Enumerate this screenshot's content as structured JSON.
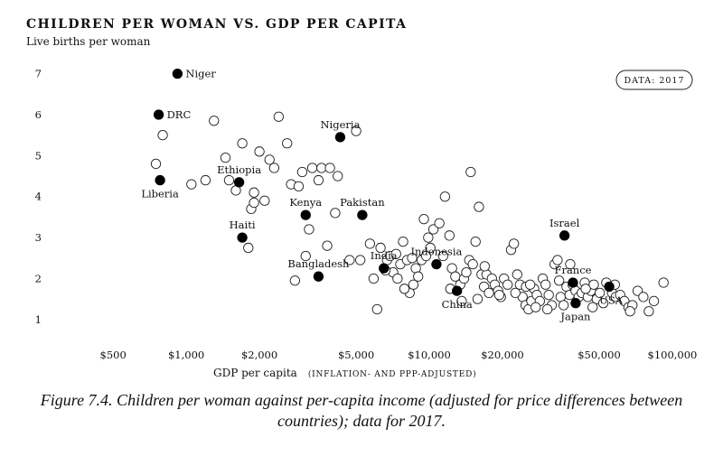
{
  "chart_data": {
    "type": "scatter",
    "title": "CHILDREN PER WOMAN VS. GDP PER CAPITA",
    "subtitle": "Live births per woman",
    "xlabel": "GDP per capita",
    "xlabel_note": "(INFLATION- AND PPP-ADJUSTED)",
    "badge": "DATA: 2017",
    "x_scale": "log",
    "xlim": [
      370,
      125000
    ],
    "ylim": [
      0.6,
      7.3
    ],
    "x_ticks": [
      {
        "value": 500,
        "label": "$500"
      },
      {
        "value": 1000,
        "label": "$1,000"
      },
      {
        "value": 2000,
        "label": "$2,000"
      },
      {
        "value": 5000,
        "label": "$5,000"
      },
      {
        "value": 10000,
        "label": "$10,000"
      },
      {
        "value": 20000,
        "label": "$20,000"
      },
      {
        "value": 50000,
        "label": "$50,000"
      },
      {
        "value": 100000,
        "label": "$100,000"
      }
    ],
    "y_ticks": [
      {
        "value": 1,
        "label": "1"
      },
      {
        "value": 2,
        "label": "2"
      },
      {
        "value": 3,
        "label": "3"
      },
      {
        "value": 4,
        "label": "4"
      },
      {
        "value": 5,
        "label": "5"
      },
      {
        "value": 6,
        "label": "6"
      },
      {
        "value": 7,
        "label": "7"
      }
    ],
    "highlighted": [
      {
        "name": "Niger",
        "x": 920,
        "y": 7.0,
        "label_pos": "right"
      },
      {
        "name": "DRC",
        "x": 770,
        "y": 6.0,
        "label_pos": "right"
      },
      {
        "name": "Liberia",
        "x": 780,
        "y": 4.4,
        "label_pos": "below"
      },
      {
        "name": "Ethiopia",
        "x": 1650,
        "y": 4.35,
        "label_pos": "above"
      },
      {
        "name": "Haiti",
        "x": 1700,
        "y": 3.0,
        "label_pos": "above"
      },
      {
        "name": "Nigeria",
        "x": 4300,
        "y": 5.45,
        "label_pos": "above"
      },
      {
        "name": "Kenya",
        "x": 3100,
        "y": 3.55,
        "label_pos": "above"
      },
      {
        "name": "Pakistan",
        "x": 5300,
        "y": 3.55,
        "label_pos": "above"
      },
      {
        "name": "Bangladesh",
        "x": 3500,
        "y": 2.05,
        "label_pos": "above"
      },
      {
        "name": "India",
        "x": 6500,
        "y": 2.25,
        "label_pos": "above"
      },
      {
        "name": "Indonesia",
        "x": 10700,
        "y": 2.35,
        "label_pos": "above"
      },
      {
        "name": "China",
        "x": 13000,
        "y": 1.7,
        "label_pos": "below"
      },
      {
        "name": "Israel",
        "x": 36000,
        "y": 3.05,
        "label_pos": "above"
      },
      {
        "name": "France",
        "x": 39000,
        "y": 1.9,
        "label_pos": "above"
      },
      {
        "name": "USA",
        "x": 55000,
        "y": 1.8,
        "label_pos": "below-right"
      },
      {
        "name": "Japan",
        "x": 40000,
        "y": 1.4,
        "label_pos": "below"
      }
    ],
    "others": [
      [
        1300,
        5.85
      ],
      [
        1450,
        4.95
      ],
      [
        1200,
        4.4
      ],
      [
        1050,
        4.3
      ],
      [
        800,
        5.5
      ],
      [
        750,
        4.8
      ],
      [
        1700,
        5.3
      ],
      [
        2400,
        5.95
      ],
      [
        2000,
        5.1
      ],
      [
        2200,
        4.9
      ],
      [
        2600,
        5.3
      ],
      [
        1600,
        4.15
      ],
      [
        1500,
        4.4
      ],
      [
        1900,
        4.1
      ],
      [
        2100,
        3.9
      ],
      [
        2300,
        4.7
      ],
      [
        2700,
        4.3
      ],
      [
        3000,
        4.6
      ],
      [
        3300,
        4.7
      ],
      [
        3600,
        4.7
      ],
      [
        3900,
        4.7
      ],
      [
        4200,
        4.5
      ],
      [
        3500,
        4.4
      ],
      [
        2900,
        4.25
      ],
      [
        3200,
        3.2
      ],
      [
        4100,
        3.6
      ],
      [
        5000,
        5.6
      ],
      [
        1850,
        3.7
      ],
      [
        1900,
        3.85
      ],
      [
        1800,
        2.75
      ],
      [
        2800,
        1.95
      ],
      [
        3100,
        2.55
      ],
      [
        3800,
        2.8
      ],
      [
        4700,
        2.45
      ],
      [
        5200,
        2.45
      ],
      [
        5700,
        2.85
      ],
      [
        5900,
        2.0
      ],
      [
        6100,
        1.25
      ],
      [
        6300,
        2.75
      ],
      [
        6700,
        2.45
      ],
      [
        6900,
        2.55
      ],
      [
        7100,
        2.15
      ],
      [
        7400,
        2.0
      ],
      [
        7600,
        2.35
      ],
      [
        7800,
        2.9
      ],
      [
        8100,
        2.45
      ],
      [
        8500,
        2.5
      ],
      [
        8800,
        2.25
      ],
      [
        9000,
        2.05
      ],
      [
        9300,
        2.45
      ],
      [
        9700,
        2.55
      ],
      [
        9900,
        3.0
      ],
      [
        10100,
        2.75
      ],
      [
        9500,
        3.45
      ],
      [
        10400,
        3.2
      ],
      [
        11000,
        3.35
      ],
      [
        11600,
        4.0
      ],
      [
        12100,
        3.05
      ],
      [
        12400,
        2.25
      ],
      [
        12800,
        2.05
      ],
      [
        13400,
        1.85
      ],
      [
        13900,
        2.0
      ],
      [
        14200,
        2.15
      ],
      [
        14600,
        2.45
      ],
      [
        15100,
        2.35
      ],
      [
        15500,
        2.9
      ],
      [
        16000,
        3.75
      ],
      [
        14800,
        4.6
      ],
      [
        16400,
        2.1
      ],
      [
        16800,
        1.8
      ],
      [
        17200,
        2.1
      ],
      [
        17600,
        1.65
      ],
      [
        18100,
        2.0
      ],
      [
        18600,
        1.85
      ],
      [
        19200,
        1.7
      ],
      [
        19700,
        1.55
      ],
      [
        20300,
        2.0
      ],
      [
        21000,
        1.85
      ],
      [
        21700,
        2.7
      ],
      [
        22300,
        2.85
      ],
      [
        23000,
        2.1
      ],
      [
        23600,
        1.85
      ],
      [
        24200,
        1.55
      ],
      [
        24900,
        1.35
      ],
      [
        25600,
        1.25
      ],
      [
        26300,
        1.45
      ],
      [
        27000,
        1.75
      ],
      [
        27700,
        1.6
      ],
      [
        28500,
        1.45
      ],
      [
        29300,
        2.0
      ],
      [
        30100,
        1.85
      ],
      [
        31000,
        1.6
      ],
      [
        31900,
        1.35
      ],
      [
        32800,
        2.35
      ],
      [
        33700,
        2.45
      ],
      [
        34700,
        1.55
      ],
      [
        35700,
        1.35
      ],
      [
        36700,
        1.8
      ],
      [
        37800,
        1.6
      ],
      [
        38900,
        1.85
      ],
      [
        40000,
        1.7
      ],
      [
        41200,
        1.55
      ],
      [
        42400,
        1.65
      ],
      [
        43600,
        1.9
      ],
      [
        44900,
        1.55
      ],
      [
        46200,
        1.7
      ],
      [
        47500,
        1.85
      ],
      [
        48900,
        1.5
      ],
      [
        50300,
        1.65
      ],
      [
        52000,
        1.4
      ],
      [
        53500,
        1.9
      ],
      [
        56500,
        1.65
      ],
      [
        58500,
        1.55
      ],
      [
        61000,
        1.6
      ],
      [
        63500,
        1.45
      ],
      [
        66000,
        1.3
      ],
      [
        68500,
        1.35
      ],
      [
        72000,
        1.7
      ],
      [
        76000,
        1.55
      ],
      [
        80000,
        1.2
      ],
      [
        84000,
        1.45
      ],
      [
        92000,
        1.9
      ],
      [
        67000,
        1.2
      ],
      [
        38000,
        2.35
      ],
      [
        22600,
        1.65
      ],
      [
        25000,
        1.8
      ],
      [
        27400,
        1.3
      ],
      [
        30600,
        1.25
      ],
      [
        26000,
        1.85
      ],
      [
        19400,
        1.6
      ],
      [
        34200,
        1.95
      ],
      [
        47000,
        1.3
      ],
      [
        58000,
        1.85
      ],
      [
        44000,
        1.75
      ],
      [
        15800,
        1.5
      ],
      [
        16900,
        2.3
      ],
      [
        11400,
        2.55
      ],
      [
        12200,
        1.75
      ],
      [
        13600,
        1.45
      ],
      [
        8300,
        1.65
      ],
      [
        8600,
        1.85
      ],
      [
        7900,
        1.75
      ],
      [
        6600,
        2.2
      ],
      [
        7300,
        2.6
      ]
    ]
  },
  "caption": "Figure 7.4. Children per woman against per-capita income (adjusted for price differences between countries); data for 2017."
}
